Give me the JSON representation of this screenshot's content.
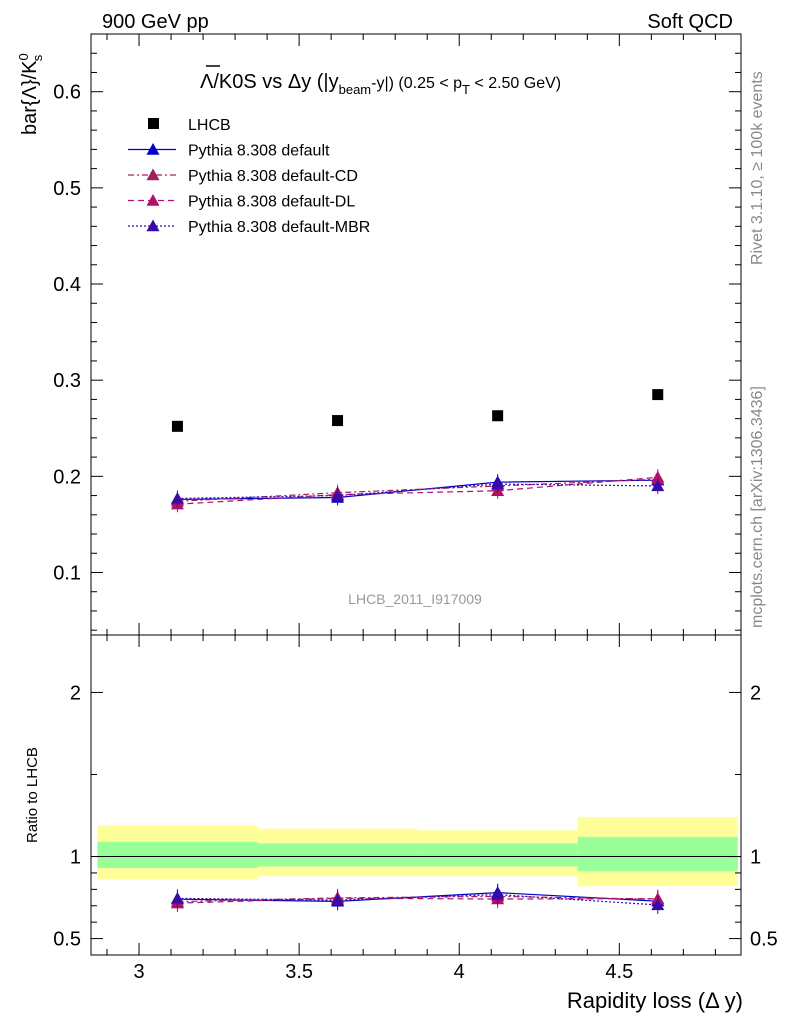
{
  "header": {
    "left": "900 GeV pp",
    "right": "Soft QCD"
  },
  "side_labels": {
    "rivet": "Rivet 3.1.10, ≥ 100k events",
    "mcplots": "mcplots.cern.ch [arXiv:1306.3436]"
  },
  "chart_data": [
    {
      "type": "scatter",
      "panel": "main",
      "title": {
        "lambda_symbol": "Λ",
        "main": "/K0S vs Δy (|y",
        "sub1": "beam",
        "mid": "-y|) (0.25 < p",
        "sub2": "T",
        "end": " < 2.50 GeV)"
      },
      "ylabel": {
        "main": "bar{Λ}/K",
        "sup": "0",
        "sub": "s"
      },
      "watermark": "LHCB_2011_I917009",
      "xlim": [
        2.85,
        4.88
      ],
      "ylim": [
        0.035,
        0.66
      ],
      "xticks": [
        3,
        3.5,
        4,
        4.5
      ],
      "xtick_labels": [
        "3",
        "3.5",
        "4",
        "4.5"
      ],
      "yticks": [
        0.1,
        0.2,
        0.3,
        0.4,
        0.5,
        0.6
      ],
      "ytick_labels": [
        "0.1",
        "0.2",
        "0.3",
        "0.4",
        "0.5",
        "0.6"
      ],
      "legend_position": "top-left",
      "x": [
        3.12,
        3.62,
        4.12,
        4.62
      ],
      "series": [
        {
          "name": "LHCB",
          "marker": "square",
          "color": "#000000",
          "values": [
            0.252,
            0.258,
            0.263,
            0.285
          ]
        },
        {
          "name": "Pythia 8.308 default",
          "marker": "triangle",
          "line": "solid",
          "color": "#0000cc",
          "values": [
            0.176,
            0.178,
            0.194,
            0.196
          ]
        },
        {
          "name": "Pythia 8.308 default-CD",
          "marker": "triangle",
          "line": "dashdot",
          "color": "#a0205a",
          "values": [
            0.174,
            0.183,
            0.19,
            0.197
          ]
        },
        {
          "name": "Pythia 8.308 default-DL",
          "marker": "triangle",
          "line": "dashed",
          "color": "#b0106a",
          "values": [
            0.171,
            0.181,
            0.185,
            0.199
          ]
        },
        {
          "name": "Pythia 8.308 default-MBR",
          "marker": "triangle",
          "line": "dotted",
          "color": "#3a0aa8",
          "values": [
            0.177,
            0.18,
            0.192,
            0.19
          ]
        }
      ]
    },
    {
      "type": "line",
      "panel": "ratio",
      "ylabel": "Ratio to LHCB",
      "xlabel": "Rapidity loss (Δ y)",
      "xlim": [
        2.85,
        4.88
      ],
      "ylim": [
        0.4,
        2.35
      ],
      "yticks": [
        0.5,
        1,
        2
      ],
      "ytick_labels": [
        "0.5",
        "1",
        "2"
      ],
      "bins": [
        {
          "x_low": 2.87,
          "x_high": 3.37,
          "stat_low": 0.93,
          "stat_high": 1.09,
          "total_low": 0.86,
          "total_high": 1.19
        },
        {
          "x_low": 3.37,
          "x_high": 3.87,
          "stat_low": 0.94,
          "stat_high": 1.08,
          "total_low": 0.88,
          "total_high": 1.17
        },
        {
          "x_low": 3.87,
          "x_high": 4.37,
          "stat_low": 0.94,
          "stat_high": 1.08,
          "total_low": 0.88,
          "total_high": 1.16
        },
        {
          "x_low": 4.37,
          "x_high": 4.87,
          "stat_low": 0.91,
          "stat_high": 1.12,
          "total_low": 0.82,
          "total_high": 1.24
        }
      ],
      "x": [
        3.12,
        3.62,
        4.12,
        4.62
      ],
      "series": [
        {
          "name": "Pythia 8.308 default",
          "color": "#0000cc",
          "line": "solid",
          "values": [
            0.74,
            0.727,
            0.78,
            0.728
          ]
        },
        {
          "name": "Pythia 8.308 default-CD",
          "color": "#a0205a",
          "line": "dashdot",
          "values": [
            0.725,
            0.748,
            0.757,
            0.74
          ]
        },
        {
          "name": "Pythia 8.308 default-DL",
          "color": "#b0106a",
          "line": "dashed",
          "values": [
            0.716,
            0.746,
            0.741,
            0.743
          ]
        },
        {
          "name": "Pythia 8.308 default-MBR",
          "color": "#3a0aa8",
          "line": "dotted",
          "values": [
            0.745,
            0.735,
            0.768,
            0.705
          ]
        }
      ]
    }
  ],
  "colors": {
    "total_band": "#ffff99",
    "stat_band": "#99ff99"
  }
}
